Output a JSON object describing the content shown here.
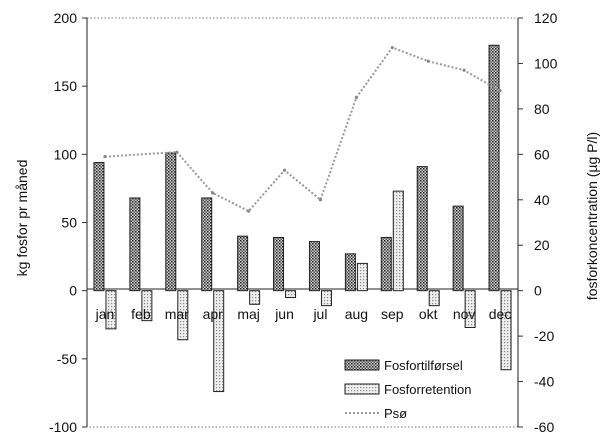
{
  "chart_data": {
    "type": "bar",
    "categories": [
      "jan",
      "feb",
      "mar",
      "apr",
      "maj",
      "jun",
      "jul",
      "aug",
      "sep",
      "okt",
      "nov",
      "dec"
    ],
    "series": [
      {
        "name": "Fosfortilførsel",
        "axis": "left",
        "kind": "bar",
        "pattern": "dark-dots",
        "values": [
          94,
          68,
          101,
          68,
          40,
          39,
          36,
          27,
          39,
          91,
          62,
          180
        ]
      },
      {
        "name": "Fosforretention",
        "axis": "left",
        "kind": "bar",
        "pattern": "light-dots",
        "values": [
          -28,
          -22,
          -36,
          -74,
          -10,
          -5,
          -11,
          20,
          73,
          -11,
          -27,
          -58
        ]
      },
      {
        "name": "Psø",
        "axis": "right",
        "kind": "line",
        "style": "dotted",
        "values": [
          59,
          null,
          61,
          43,
          35,
          53,
          40,
          85,
          107,
          101,
          97,
          88
        ]
      }
    ],
    "left_axis": {
      "label": "kg fosfor pr måned",
      "ylim": [
        -100,
        200
      ],
      "ticks": [
        "200",
        "150",
        "100",
        "50",
        "0",
        "-50",
        "-100"
      ]
    },
    "right_axis": {
      "label": "fosforkoncentration (µg P/l)",
      "ylim": [
        -60,
        120
      ],
      "ticks": [
        "120",
        "100",
        "80",
        "60",
        "40",
        "20",
        "0",
        "-20",
        "-40",
        "-60"
      ]
    },
    "legend_position": "bottom-right",
    "grid": false,
    "colors": {
      "bar_fill": "#b8b8b8",
      "bar_stroke": "#222222",
      "line": "#999999"
    }
  }
}
